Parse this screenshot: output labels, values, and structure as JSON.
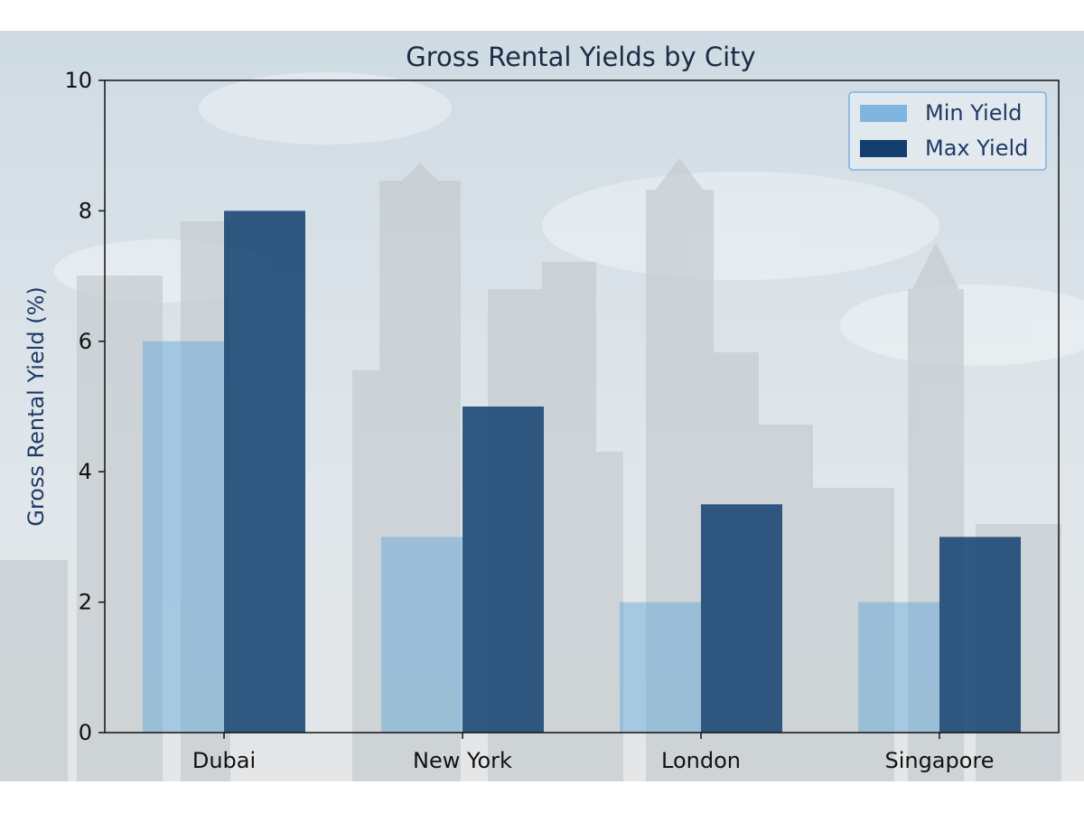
{
  "chart_data": {
    "type": "bar",
    "title": "Gross Rental Yields by City",
    "xlabel": "",
    "ylabel": "Gross Rental Yield (%)",
    "ylim": [
      0,
      10
    ],
    "yticks": [
      0,
      2,
      4,
      6,
      8,
      10
    ],
    "categories": [
      "Dubai",
      "New York",
      "London",
      "Singapore"
    ],
    "series": [
      {
        "name": "Min Yield",
        "values": [
          6,
          3,
          2,
          2
        ],
        "color": "#5ea3da"
      },
      {
        "name": "Max Yield",
        "values": [
          8,
          5,
          3.5,
          3
        ],
        "color": "#123f6e"
      }
    ],
    "grid": false,
    "legend_position": "top-right",
    "background": "city skyline photo"
  }
}
